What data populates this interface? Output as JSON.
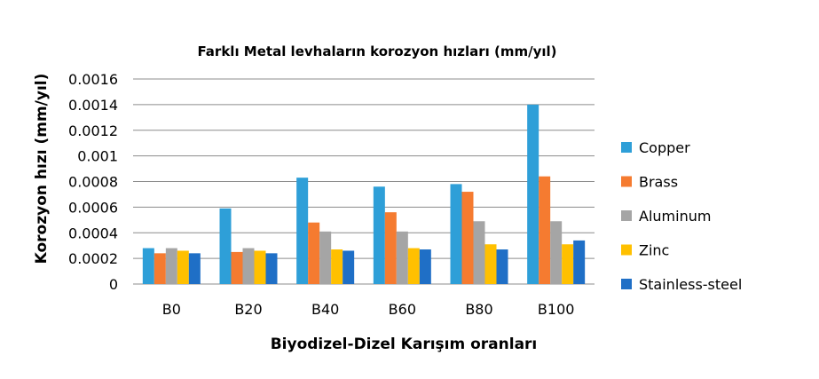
{
  "chart_data": {
    "type": "bar",
    "title": "Farklı Metal levhaların korozyon hızları (mm/yıl)",
    "xlabel": "Biyodizel-Dizel Karışım oranları",
    "ylabel": "Korozyon hızı (mm/yıl)",
    "categories": [
      "B0",
      "B20",
      "B40",
      "B60",
      "B80",
      "B100"
    ],
    "ylim": [
      0,
      0.0016
    ],
    "yticks": [
      "0",
      "0.0002",
      "0.0004",
      "0.0006",
      "0.0008",
      "0.001",
      "0.0012",
      "0.0014",
      "0.0016"
    ],
    "grid": true,
    "legend_position": "right",
    "series": [
      {
        "name": "Copper",
        "color": "#2E9FD8",
        "values": [
          0.00028,
          0.00059,
          0.00083,
          0.00076,
          0.00078,
          0.0014
        ]
      },
      {
        "name": "Brass",
        "color": "#F57B30",
        "values": [
          0.00024,
          0.00025,
          0.00048,
          0.00056,
          0.00072,
          0.00084
        ]
      },
      {
        "name": "Aluminum",
        "color": "#A5A5A5",
        "values": [
          0.00028,
          0.00028,
          0.00041,
          0.00041,
          0.00049,
          0.00049
        ]
      },
      {
        "name": "Zinc",
        "color": "#FFC000",
        "values": [
          0.00026,
          0.00026,
          0.00027,
          0.00028,
          0.00031,
          0.00031
        ]
      },
      {
        "name": "Stainless-steel",
        "color": "#1F6FC6",
        "values": [
          0.00024,
          0.00024,
          0.00026,
          0.00027,
          0.00027,
          0.00034
        ]
      }
    ]
  }
}
